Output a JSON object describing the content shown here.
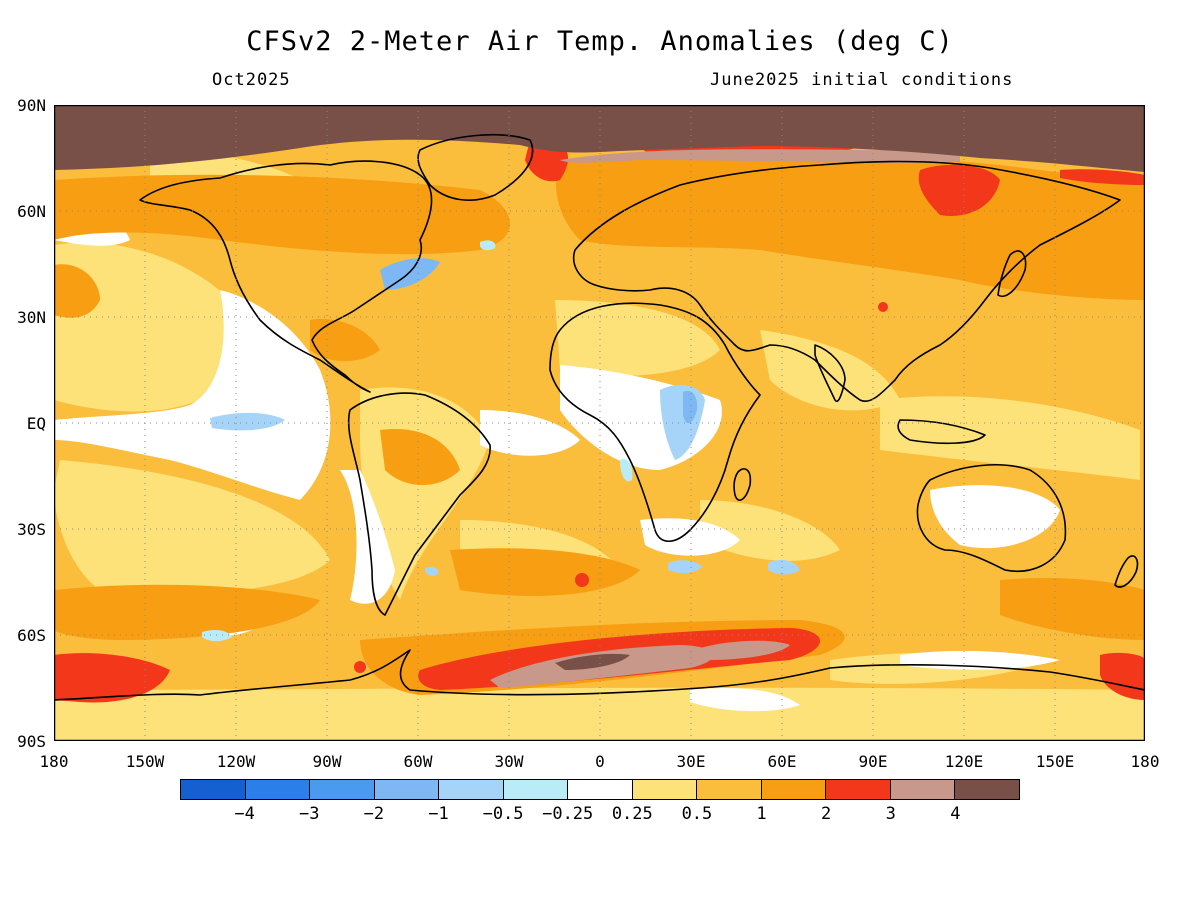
{
  "title": "CFSv2 2-Meter Air Temp. Anomalies (deg C)",
  "subtitle_left": "Oct2025",
  "subtitle_right": "June2025 initial conditions",
  "lat_labels": [
    "90N",
    "60N",
    "30N",
    "EQ",
    "30S",
    "60S",
    "90S"
  ],
  "lon_labels": [
    "180",
    "150W",
    "120W",
    "90W",
    "60W",
    "30W",
    "0",
    "30E",
    "60E",
    "90E",
    "120E",
    "150E",
    "180"
  ],
  "colorbar": {
    "colors": [
      "#1560d0",
      "#2b7fe8",
      "#4a9af0",
      "#7db8f5",
      "#a6d3f8",
      "#b9ecf6",
      "#ffffff",
      "#fde27a",
      "#fbbd3c",
      "#f79e13",
      "#f2371a",
      "#c8998b",
      "#795047"
    ],
    "labels": [
      "-4",
      "-3",
      "-2",
      "-1",
      "-0.5",
      "-0.25",
      "0.25",
      "0.5",
      "1",
      "2",
      "3",
      "4"
    ]
  }
}
